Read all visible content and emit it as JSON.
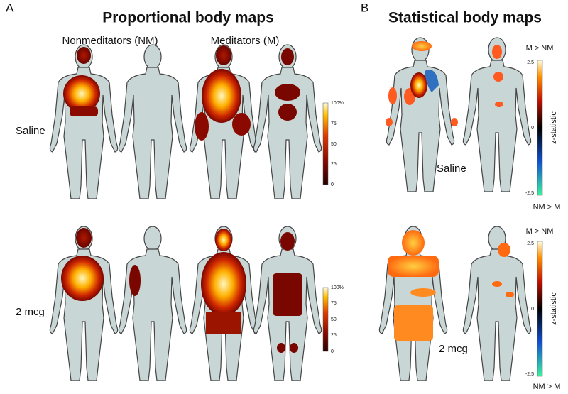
{
  "panels": [
    {
      "label": "A",
      "title": "Proportional body maps",
      "columns": [
        "Nonmeditators (NM)",
        "Meditators (M)"
      ],
      "rows": [
        "Saline",
        "2 mcg"
      ],
      "colorbar": {
        "ticks": [
          "100%",
          "75",
          "50",
          "25",
          "0"
        ]
      }
    },
    {
      "label": "B",
      "title": "Statistical body maps",
      "rows": [
        "Saline",
        "2 mcg"
      ],
      "colorbar": {
        "top": "M > NM",
        "bottom": "NM > M",
        "axis_label": "z-statistic",
        "ticks": [
          "2.5",
          "0",
          "-2.5"
        ]
      }
    }
  ]
}
